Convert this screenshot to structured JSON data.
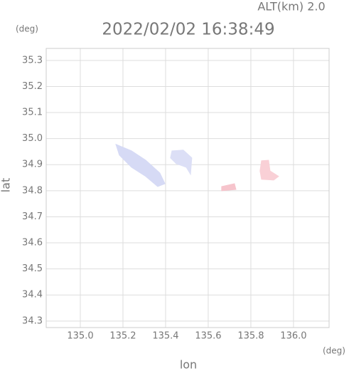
{
  "chart_data": {
    "type": "map",
    "title": "2022/02/02 16:38:49",
    "subtitle": "ALT(km) 2.0",
    "x_label": "lon",
    "y_label": "lat",
    "x_unit": "(deg)",
    "y_unit": "(deg)",
    "xlim": [
      134.84,
      136.167
    ],
    "ylim": [
      34.275,
      35.346
    ],
    "xticks": [
      {
        "value": 135.0,
        "label": "135.0"
      },
      135.2,
      135.4,
      135.6,
      135.8,
      {
        "value": 136.0,
        "label": "136.0"
      }
    ],
    "yticks": [
      35.3,
      35.2,
      35.1,
      {
        "value": 35.0,
        "label": "35.0"
      },
      34.9,
      34.8,
      34.7,
      34.6,
      34.5,
      34.4,
      34.3
    ],
    "grid": true,
    "series": [
      {
        "color": "#d6daf5",
        "lon": [
          135.167,
          135.24,
          135.307,
          135.373,
          135.397,
          135.363,
          135.307,
          135.24,
          135.183
        ],
        "lat": [
          34.978,
          34.953,
          34.917,
          34.868,
          34.827,
          34.816,
          34.855,
          34.89,
          34.937
        ]
      },
      {
        "color": "#dcdff6",
        "lon": [
          135.43,
          135.483,
          135.523,
          135.517,
          135.497,
          135.45,
          135.423
        ],
        "lat": [
          34.953,
          34.956,
          34.926,
          34.863,
          34.89,
          34.904,
          34.926
        ]
      },
      {
        "color": "#f9d0d6",
        "lon": [
          135.85,
          135.883,
          135.89,
          135.93,
          135.907,
          135.85,
          135.843
        ],
        "lat": [
          34.915,
          34.917,
          34.876,
          34.855,
          34.841,
          34.844,
          34.876
        ]
      },
      {
        "color": "#f6c4cc",
        "lon": [
          135.663,
          135.723,
          135.73,
          135.663
        ],
        "lat": [
          34.816,
          34.827,
          34.805,
          34.8
        ]
      }
    ]
  }
}
